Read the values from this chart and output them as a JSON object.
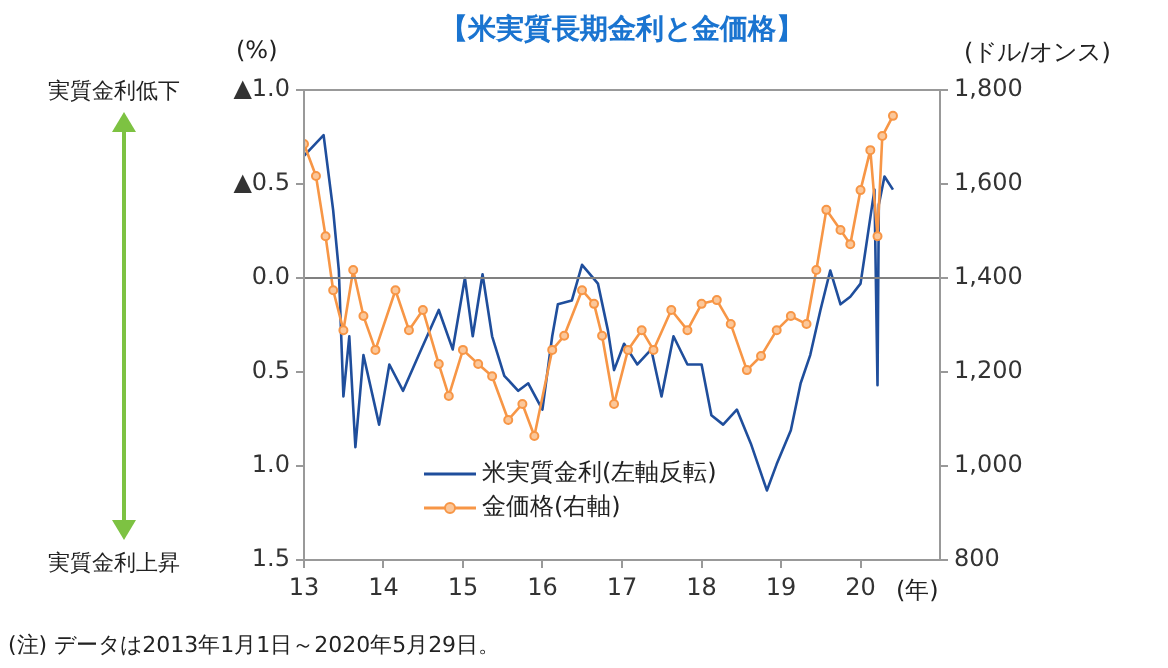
{
  "chart_data": {
    "type": "line",
    "title": "【米実質長期金利と金価格】",
    "ylabel": "(%)",
    "y2label": "(ドル/オンス)",
    "xlabel": "(年)",
    "annotations": [
      "実質金利低下",
      "実質金利上昇",
      "(注) データは2013年1月1日～2020年5月29日。"
    ],
    "xlim": [
      "2013-01-01",
      "2020-12-31"
    ],
    "xticks": [
      {
        "value": "2013-01-01",
        "label": "13"
      },
      {
        "value": "2014-01-01",
        "label": "14"
      },
      {
        "value": "2015-01-01",
        "label": "15"
      },
      {
        "value": "2016-01-01",
        "label": "16"
      },
      {
        "value": "2017-01-01",
        "label": "17"
      },
      {
        "value": "2018-01-01",
        "label": "18"
      },
      {
        "value": "2019-01-01",
        "label": "19"
      },
      {
        "value": "2020-01-01",
        "label": "20"
      }
    ],
    "ylim": [
      1.5,
      -1.0
    ],
    "yticks": [
      {
        "value": -1.0,
        "label": "▲1.0"
      },
      {
        "value": -0.5,
        "label": "▲0.5"
      },
      {
        "value": 0,
        "label": "0.0"
      },
      {
        "value": 0.5,
        "label": "0.5"
      },
      {
        "value": 1.0,
        "label": "1.0"
      },
      {
        "value": 1.5,
        "label": "1.5"
      }
    ],
    "y2lim": [
      800,
      1800
    ],
    "y2ticks": [
      800,
      {
        "value": 1000,
        "label": "1,000"
      },
      {
        "value": 1200,
        "label": "1,200"
      },
      {
        "value": 1400,
        "label": "1,400"
      },
      {
        "value": 1600,
        "label": "1,600"
      },
      {
        "value": 1800,
        "label": "1,800"
      }
    ],
    "grid": false,
    "legend": "bottom",
    "ref_lines": [
      {
        "axis": "y",
        "value": 0,
        "color": "#808080"
      }
    ],
    "series": [
      {
        "name": "米実質金利(左軸反転)",
        "color": "#1f4e9c",
        "marker": "none",
        "x": [
          "2013-01-01",
          "2013-04-01",
          "2013-05-15",
          "2013-06-10",
          "2013-07-01",
          "2013-07-28",
          "2013-08-25",
          "2013-10-01",
          "2013-12-12",
          "2014-01-28",
          "2014-04-01",
          "2014-06-12",
          "2014-09-12",
          "2014-11-15",
          "2015-01-10",
          "2015-02-15",
          "2015-04-01",
          "2015-05-15",
          "2015-07-10",
          "2015-09-12",
          "2015-10-28",
          "2016-01-01",
          "2016-02-15",
          "2016-03-12",
          "2016-05-15",
          "2016-07-01",
          "2016-09-12",
          "2016-10-28",
          "2016-11-25",
          "2017-01-10",
          "2017-03-12",
          "2017-05-15",
          "2017-07-01",
          "2017-08-25",
          "2017-10-28",
          "2018-01-01",
          "2018-02-15",
          "2018-04-10",
          "2018-06-12",
          "2018-08-15",
          "2018-10-28",
          "2018-12-12",
          "2019-02-15",
          "2019-04-01",
          "2019-05-15",
          "2019-07-01",
          "2019-08-15",
          "2019-10-01",
          "2019-11-15",
          "2020-01-01",
          "2020-01-28",
          "2020-03-05",
          "2020-03-19",
          "2020-03-25",
          "2020-04-20",
          "2020-05-29"
        ],
        "values": [
          -0.65,
          -0.76,
          -0.36,
          -0.04,
          0.63,
          0.31,
          0.9,
          0.41,
          0.78,
          0.46,
          0.6,
          0.41,
          0.17,
          0.38,
          0.0,
          0.31,
          -0.02,
          0.31,
          0.52,
          0.6,
          0.56,
          0.7,
          0.31,
          0.14,
          0.12,
          -0.07,
          0.03,
          0.28,
          0.49,
          0.35,
          0.46,
          0.38,
          0.63,
          0.31,
          0.46,
          0.46,
          0.73,
          0.78,
          0.7,
          0.88,
          1.13,
          0.99,
          0.81,
          0.56,
          0.41,
          0.17,
          -0.04,
          0.14,
          0.1,
          0.03,
          -0.18,
          -0.47,
          0.57,
          -0.39,
          -0.54,
          -0.47
        ]
      },
      {
        "name": "金価格(右軸)",
        "color": "#f79646",
        "marker": "circle",
        "axis": "y2",
        "x": [
          "2013-01-01",
          "2013-02-25",
          "2013-04-10",
          "2013-05-15",
          "2013-07-01",
          "2013-08-15",
          "2013-10-01",
          "2013-11-25",
          "2014-02-25",
          "2014-04-28",
          "2014-07-01",
          "2014-09-12",
          "2014-10-28",
          "2015-01-01",
          "2015-03-12",
          "2015-05-15",
          "2015-07-28",
          "2015-10-01",
          "2015-11-25",
          "2016-02-15",
          "2016-04-10",
          "2016-07-01",
          "2016-08-25",
          "2016-10-01",
          "2016-11-25",
          "2017-01-28",
          "2017-04-01",
          "2017-05-25",
          "2017-08-15",
          "2017-10-28",
          "2018-01-01",
          "2018-03-12",
          "2018-05-15",
          "2018-07-28",
          "2018-10-01",
          "2018-12-12",
          "2019-02-15",
          "2019-04-28",
          "2019-06-12",
          "2019-07-28",
          "2019-10-01",
          "2019-11-15",
          "2020-01-01",
          "2020-02-15",
          "2020-03-19",
          "2020-04-10",
          "2020-05-29"
        ],
        "values": [
          1685,
          1617,
          1489,
          1374,
          1289,
          1417,
          1319,
          1247,
          1374,
          1289,
          1332,
          1217,
          1149,
          1247,
          1217,
          1191,
          1098,
          1132,
          1064,
          1247,
          1277,
          1374,
          1345,
          1277,
          1132,
          1247,
          1289,
          1247,
          1332,
          1289,
          1345,
          1353,
          1302,
          1204,
          1234,
          1289,
          1319,
          1302,
          1417,
          1545,
          1502,
          1472,
          1587,
          1672,
          1489,
          1702,
          1745
        ]
      }
    ]
  }
}
